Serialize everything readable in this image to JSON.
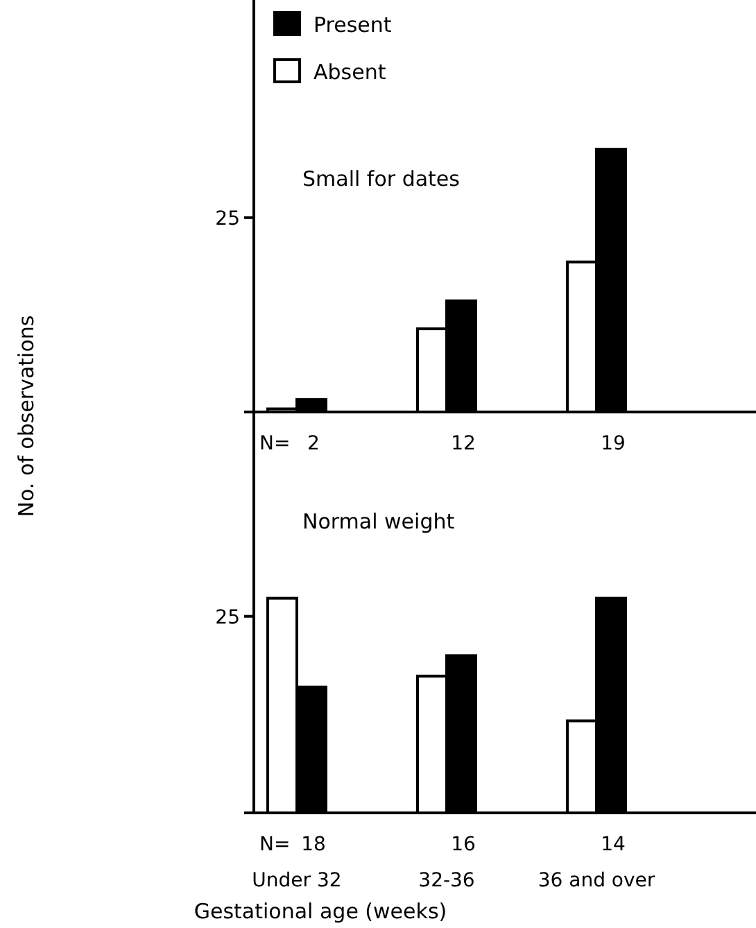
{
  "chart_data": [
    {
      "type": "bar",
      "title": "Small for dates",
      "ylabel": "No. of observations",
      "categories": [
        null,
        null,
        null
      ],
      "series": [
        {
          "name": "Absent",
          "color": "#ffffff",
          "values": [
            0.4,
            10.7,
            19.3
          ]
        },
        {
          "name": "Present",
          "color": "#000000",
          "values": [
            1.6,
            14.3,
            33.8
          ]
        }
      ],
      "ylim": [
        0,
        53
      ],
      "yticks": [
        {
          "value": 0,
          "label": null
        },
        25
      ],
      "legend": "top left",
      "tick_labels": "y",
      "annotations": [
        "N=",
        "2",
        "12",
        "19"
      ]
    },
    {
      "type": "bar",
      "title": "Normal weight",
      "xlabel": "Gestational age (weeks)",
      "categories": [
        "Under 32",
        "32-36",
        "36 and over"
      ],
      "series": [
        {
          "color": "#ffffff",
          "values": [
            27.3,
            17.4,
            11.7
          ]
        },
        {
          "color": "#000000",
          "values": [
            16,
            20,
            27.3
          ]
        }
      ],
      "ylim": [
        0,
        51
      ],
      "yticks": [
        {
          "value": 0,
          "label": null
        },
        25
      ],
      "annotations": [
        "N=",
        "18",
        "16",
        "14"
      ]
    }
  ]
}
